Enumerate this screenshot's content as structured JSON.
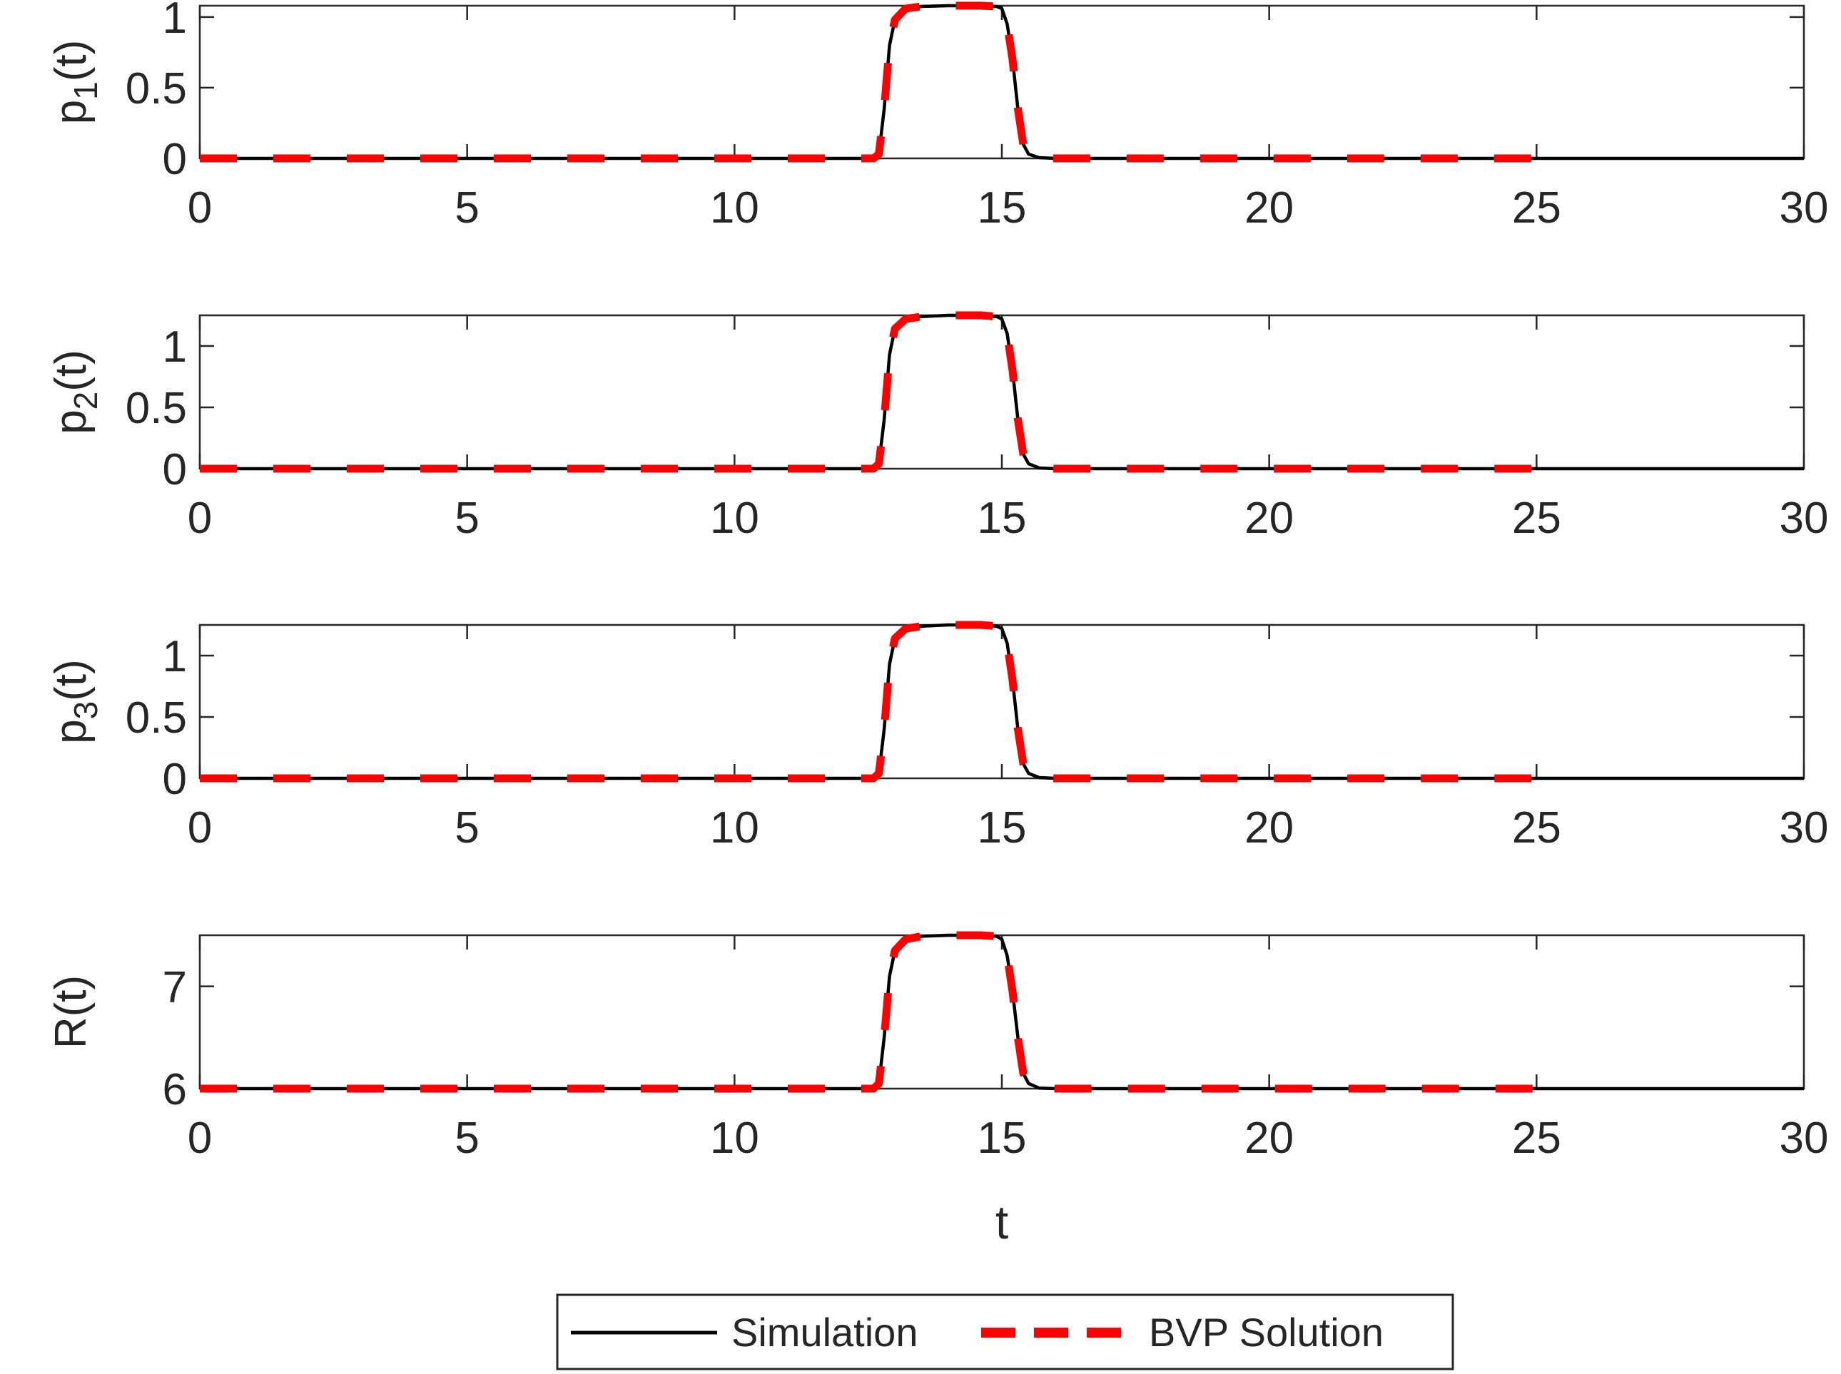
{
  "chart_data": [
    {
      "type": "line",
      "ylabel": "p",
      "ylabel_sub": "1",
      "ylabel_suffix": "(t)",
      "xlim": [
        0,
        30
      ],
      "ylim": [
        0,
        1.08
      ],
      "xticks": [
        0,
        5,
        10,
        15,
        20,
        25,
        30
      ],
      "yticks": [
        0,
        0.5,
        1
      ],
      "ytick_labels": [
        "0",
        "0.5",
        "1"
      ],
      "grid": false,
      "series": [
        {
          "name": "Simulation",
          "style": "solid",
          "x": [
            0,
            12.6,
            12.7,
            12.8,
            12.9,
            13.0,
            13.2,
            13.5,
            14.0,
            14.6,
            14.9,
            15.0,
            15.1,
            15.2,
            15.3,
            15.4,
            15.5,
            15.7,
            16.0,
            25.0,
            30.0
          ],
          "y": [
            0,
            0,
            0.03,
            0.35,
            0.8,
            0.98,
            1.06,
            1.075,
            1.08,
            1.08,
            1.075,
            1.06,
            0.95,
            0.7,
            0.35,
            0.1,
            0.03,
            0.005,
            0,
            0,
            0
          ]
        },
        {
          "name": "BVP Solution",
          "style": "dashed",
          "x": [
            0,
            12.6,
            12.7,
            12.8,
            12.9,
            13.0,
            13.2,
            13.5,
            14.0,
            14.6,
            14.9,
            15.0,
            15.1,
            15.2,
            15.3,
            15.4,
            15.5,
            15.7,
            16.0,
            25.0
          ],
          "y": [
            0,
            0,
            0.03,
            0.35,
            0.8,
            0.98,
            1.06,
            1.075,
            1.08,
            1.08,
            1.075,
            1.06,
            0.95,
            0.7,
            0.35,
            0.1,
            0.03,
            0.005,
            0,
            0
          ]
        }
      ]
    },
    {
      "type": "line",
      "ylabel": "p",
      "ylabel_sub": "2",
      "ylabel_suffix": "(t)",
      "xlim": [
        0,
        30
      ],
      "ylim": [
        0,
        1.25
      ],
      "xticks": [
        0,
        5,
        10,
        15,
        20,
        25,
        30
      ],
      "yticks": [
        0,
        0.5,
        1
      ],
      "ytick_labels": [
        "0",
        "0.5",
        "1"
      ],
      "grid": false,
      "series": [
        {
          "name": "Simulation",
          "style": "solid",
          "x": [
            0,
            12.6,
            12.7,
            12.8,
            12.9,
            13.0,
            13.2,
            13.5,
            14.0,
            14.6,
            14.9,
            15.0,
            15.1,
            15.2,
            15.3,
            15.4,
            15.5,
            15.7,
            16.0,
            25.0,
            30.0
          ],
          "y": [
            0,
            0,
            0.04,
            0.4,
            0.93,
            1.14,
            1.22,
            1.24,
            1.25,
            1.25,
            1.24,
            1.22,
            1.1,
            0.8,
            0.4,
            0.12,
            0.04,
            0.006,
            0,
            0,
            0
          ]
        },
        {
          "name": "BVP Solution",
          "style": "dashed",
          "x": [
            0,
            12.6,
            12.7,
            12.8,
            12.9,
            13.0,
            13.2,
            13.5,
            14.0,
            14.6,
            14.9,
            15.0,
            15.1,
            15.2,
            15.3,
            15.4,
            15.5,
            15.7,
            16.0,
            25.0
          ],
          "y": [
            0,
            0,
            0.04,
            0.4,
            0.93,
            1.14,
            1.22,
            1.24,
            1.25,
            1.25,
            1.24,
            1.22,
            1.1,
            0.8,
            0.4,
            0.12,
            0.04,
            0.006,
            0,
            0
          ]
        }
      ]
    },
    {
      "type": "line",
      "ylabel": "p",
      "ylabel_sub": "3",
      "ylabel_suffix": "(t)",
      "xlim": [
        0,
        30
      ],
      "ylim": [
        0,
        1.25
      ],
      "xticks": [
        0,
        5,
        10,
        15,
        20,
        25,
        30
      ],
      "yticks": [
        0,
        0.5,
        1
      ],
      "ytick_labels": [
        "0",
        "0.5",
        "1"
      ],
      "grid": false,
      "series": [
        {
          "name": "Simulation",
          "style": "solid",
          "x": [
            0,
            12.6,
            12.7,
            12.8,
            12.9,
            13.0,
            13.2,
            13.5,
            14.0,
            14.6,
            14.9,
            15.0,
            15.1,
            15.2,
            15.3,
            15.4,
            15.5,
            15.7,
            16.0,
            25.0,
            30.0
          ],
          "y": [
            0,
            0,
            0.04,
            0.4,
            0.93,
            1.14,
            1.22,
            1.24,
            1.25,
            1.25,
            1.24,
            1.22,
            1.1,
            0.8,
            0.4,
            0.12,
            0.04,
            0.006,
            0,
            0,
            0
          ]
        },
        {
          "name": "BVP Solution",
          "style": "dashed",
          "x": [
            0,
            12.6,
            12.7,
            12.8,
            12.9,
            13.0,
            13.2,
            13.5,
            14.0,
            14.6,
            14.9,
            15.0,
            15.1,
            15.2,
            15.3,
            15.4,
            15.5,
            15.7,
            16.0,
            25.0
          ],
          "y": [
            0,
            0,
            0.04,
            0.4,
            0.93,
            1.14,
            1.22,
            1.24,
            1.25,
            1.25,
            1.24,
            1.22,
            1.1,
            0.8,
            0.4,
            0.12,
            0.04,
            0.006,
            0,
            0
          ]
        }
      ]
    },
    {
      "type": "line",
      "ylabel": "R(t)",
      "ylabel_sub": "",
      "ylabel_suffix": "",
      "xlabel": "t",
      "xlim": [
        0,
        30
      ],
      "ylim": [
        6,
        7.5
      ],
      "xticks": [
        0,
        5,
        10,
        15,
        20,
        25,
        30
      ],
      "yticks": [
        6,
        7
      ],
      "ytick_labels": [
        "6",
        "7"
      ],
      "grid": false,
      "series": [
        {
          "name": "Simulation",
          "style": "solid",
          "x": [
            0,
            12.6,
            12.7,
            12.8,
            12.9,
            13.0,
            13.2,
            13.5,
            14.0,
            14.6,
            14.9,
            15.0,
            15.1,
            15.2,
            15.3,
            15.4,
            15.5,
            15.7,
            16.0,
            25.0,
            30.0
          ],
          "y": [
            6,
            6,
            6.05,
            6.5,
            7.1,
            7.35,
            7.46,
            7.49,
            7.5,
            7.5,
            7.49,
            7.46,
            7.3,
            6.95,
            6.5,
            6.15,
            6.05,
            6.005,
            6,
            6,
            6
          ]
        },
        {
          "name": "BVP Solution",
          "style": "dashed",
          "x": [
            0,
            12.6,
            12.7,
            12.8,
            12.9,
            13.0,
            13.2,
            13.5,
            14.0,
            14.6,
            14.9,
            15.0,
            15.1,
            15.2,
            15.3,
            15.4,
            15.5,
            15.7,
            16.0,
            25.0
          ],
          "y": [
            6,
            6,
            6.05,
            6.5,
            7.1,
            7.35,
            7.46,
            7.49,
            7.5,
            7.5,
            7.49,
            7.46,
            7.3,
            6.95,
            6.5,
            6.15,
            6.05,
            6.005,
            6,
            6
          ]
        }
      ]
    }
  ],
  "legend": {
    "position": "bottom-center",
    "items": [
      {
        "label": "Simulation",
        "style": "solid",
        "color": "#000000"
      },
      {
        "label": "BVP Solution",
        "style": "dashed",
        "color": "#ff0000"
      }
    ]
  },
  "colors": {
    "simulation": "#000000",
    "bvp": "#ff0000",
    "axes": "#262626"
  }
}
